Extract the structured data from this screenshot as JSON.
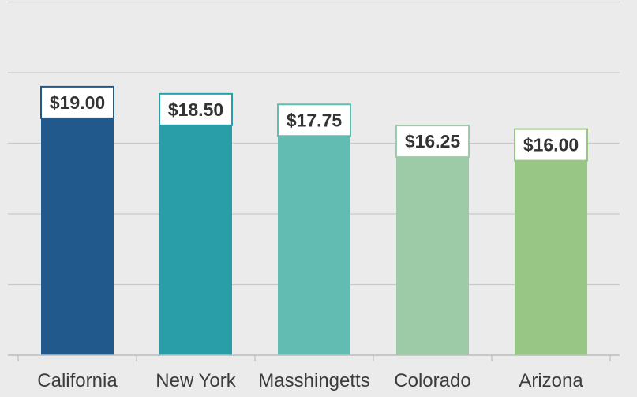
{
  "chart_data": {
    "type": "bar",
    "categories": [
      "California",
      "New York",
      "Masshingetts",
      "Colorado",
      "Arizona"
    ],
    "values": [
      19.0,
      18.5,
      17.75,
      16.25,
      16.0
    ],
    "value_labels": [
      "$19.00",
      "$18.50",
      "$17.75",
      "$16.25",
      "$16.00"
    ],
    "colors": [
      "#22598c",
      "#2a9ea8",
      "#63bcb2",
      "#9ecba7",
      "#98c785"
    ],
    "title": "",
    "xlabel": "",
    "ylabel": "",
    "ylim": [
      0,
      25
    ],
    "grid": true,
    "legend": "none"
  }
}
